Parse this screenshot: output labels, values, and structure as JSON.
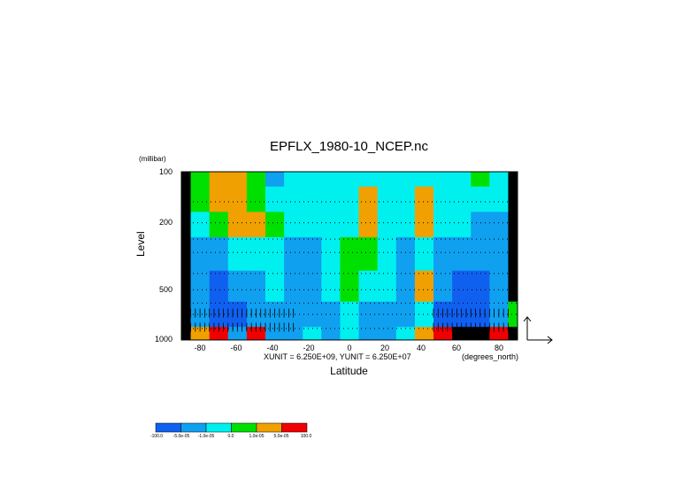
{
  "chart_data": {
    "type": "heatmap",
    "title": "EPFLX_1980-10_NCEP.nc",
    "ylabel": "Level",
    "y_units": "(millibar)",
    "xlabel": "Latitude",
    "x_units": "(degrees_north)",
    "vector_scale_text": "XUNIT = 6.250E+09, YUNIT = 6.250E+07",
    "x_ticks": [
      "-80",
      "-60",
      "-40",
      "-20",
      "0",
      "20",
      "40",
      "60",
      "80"
    ],
    "y_ticks": [
      "100",
      "200",
      "500",
      "1000"
    ],
    "xlim": [
      -90,
      90
    ],
    "ylim": [
      1000,
      100
    ],
    "y_scale": "log",
    "x_values": [
      -90,
      -80,
      -70,
      -60,
      -50,
      -40,
      -30,
      -20,
      -10,
      0,
      10,
      20,
      30,
      40,
      50,
      60,
      70,
      80,
      90
    ],
    "y_values": [
      100,
      150,
      200,
      300,
      500,
      700,
      1000
    ],
    "values": [
      [
        6,
        3,
        4,
        4,
        3,
        1,
        2,
        2,
        2,
        2,
        2,
        2,
        2,
        2,
        2,
        2,
        3,
        2,
        6
      ],
      [
        6,
        3,
        4,
        4,
        3,
        2,
        2,
        2,
        2,
        2,
        4,
        2,
        2,
        4,
        2,
        2,
        2,
        2,
        6
      ],
      [
        6,
        2,
        3,
        4,
        4,
        3,
        2,
        2,
        2,
        2,
        4,
        2,
        2,
        4,
        2,
        2,
        1,
        1,
        6
      ],
      [
        6,
        1,
        1,
        2,
        2,
        2,
        1,
        1,
        2,
        3,
        3,
        2,
        1,
        2,
        1,
        1,
        1,
        1,
        6
      ],
      [
        6,
        1,
        0,
        1,
        1,
        2,
        1,
        1,
        2,
        3,
        2,
        2,
        1,
        4,
        1,
        0,
        0,
        1,
        6
      ],
      [
        6,
        1,
        0,
        0,
        1,
        1,
        1,
        1,
        1,
        2,
        1,
        1,
        1,
        2,
        0,
        0,
        0,
        1,
        3
      ],
      [
        6,
        4,
        5,
        1,
        5,
        1,
        1,
        2,
        1,
        2,
        1,
        1,
        2,
        4,
        5,
        6,
        6,
        5,
        6
      ]
    ],
    "colorbar": {
      "colors": [
        "#1060f0",
        "#10a0f0",
        "#00f0f0",
        "#00e000",
        "#f0a000",
        "#f00000"
      ],
      "ticks": [
        "-100.0",
        "-5.0e-05",
        "-1.0e-05",
        "0.0",
        "1.0e-05",
        "5.0e-05",
        "100.0"
      ]
    }
  }
}
